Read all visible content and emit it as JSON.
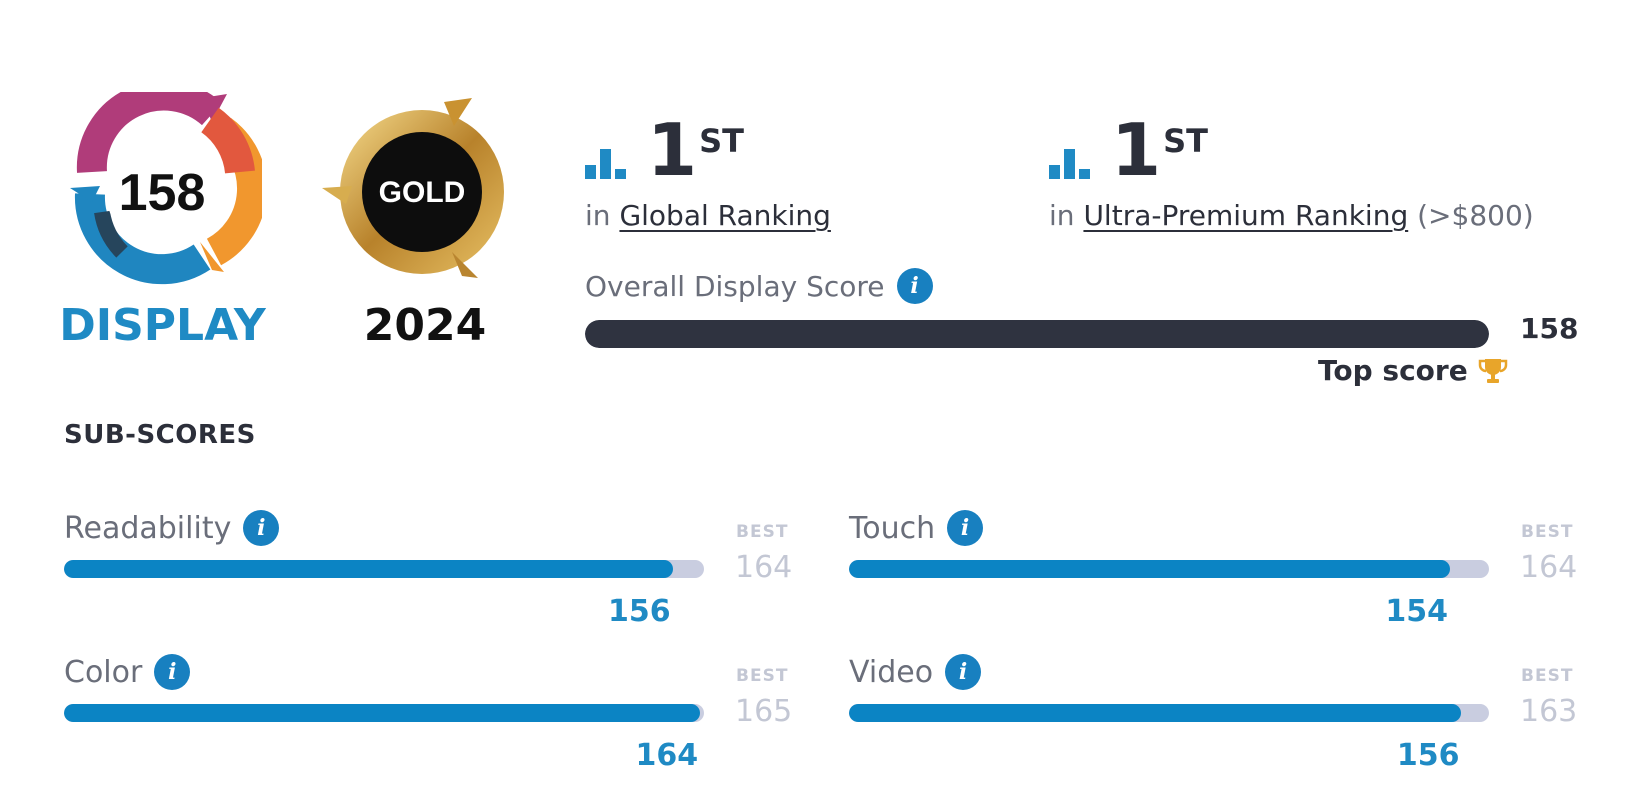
{
  "badges": {
    "display_score": "158",
    "display_label": "DISPLAY",
    "award_label": "GOLD",
    "award_year": "2024"
  },
  "rankings": [
    {
      "position": "1",
      "suffix": "ST",
      "prefix": "in",
      "link": "Global Ranking",
      "note": ""
    },
    {
      "position": "1",
      "suffix": "ST",
      "prefix": "in",
      "link": "Ultra-Premium Ranking",
      "note": "(>$800)"
    }
  ],
  "overall": {
    "label": "Overall Display Score",
    "value": "158",
    "fill_fraction": 1.0,
    "top_score_label": "Top score"
  },
  "subscores_title": "SUB-SCORES",
  "subscores": [
    {
      "label": "Readability",
      "best_label": "BEST",
      "best": "164",
      "score": "156",
      "fraction": 0.951
    },
    {
      "label": "Touch",
      "best_label": "BEST",
      "best": "164",
      "score": "154",
      "fraction": 0.939
    },
    {
      "label": "Color",
      "best_label": "BEST",
      "best": "165",
      "score": "164",
      "fraction": 0.994
    },
    {
      "label": "Video",
      "best_label": "BEST",
      "best": "163",
      "score": "156",
      "fraction": 0.957
    }
  ],
  "colors": {
    "accent": "#1f8ac4",
    "dark": "#2f3340",
    "track": "#c9cde0",
    "gold": "#d4a537"
  },
  "icons": {
    "ranking": "bar-chart-icon",
    "info": "info-icon",
    "trophy": "trophy-icon"
  }
}
